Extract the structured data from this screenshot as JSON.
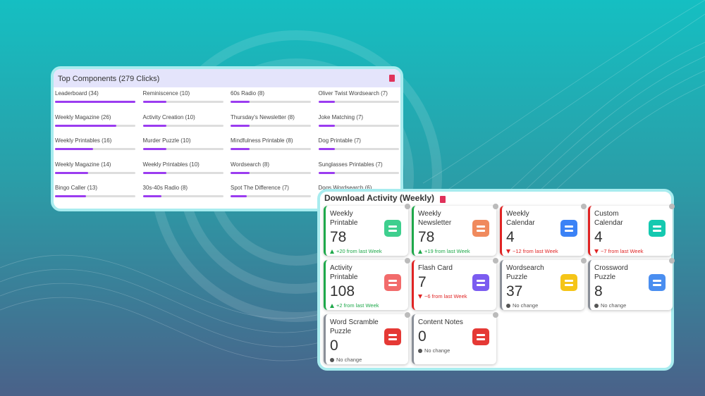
{
  "top_components": {
    "title": "Top Components (279  Clicks)",
    "bar_color": "#9b3cf0",
    "items": [
      {
        "label": "Leaderboard (34)",
        "clicks": 34
      },
      {
        "label": "Weekly Magazine (26)",
        "clicks": 26
      },
      {
        "label": "Weekly Printables (16)",
        "clicks": 16
      },
      {
        "label": "Weekly Magazine (14)",
        "clicks": 14
      },
      {
        "label": "Bingo Caller (13)",
        "clicks": 13
      },
      {
        "label": "Reminiscence (10)",
        "clicks": 10
      },
      {
        "label": "Activity Creation (10)",
        "clicks": 10
      },
      {
        "label": "Murder Puzzle (10)",
        "clicks": 10
      },
      {
        "label": "Weekly Printables (10)",
        "clicks": 10
      },
      {
        "label": "30s-40s Radio (8)",
        "clicks": 8
      },
      {
        "label": "60s Radio (8)",
        "clicks": 8
      },
      {
        "label": "Thursday's Newsletter (8)",
        "clicks": 8
      },
      {
        "label": "Mindfulness Printable (8)",
        "clicks": 8
      },
      {
        "label": "Wordsearch (8)",
        "clicks": 8
      },
      {
        "label": "Spot The Difference (7)",
        "clicks": 7
      },
      {
        "label": "Oliver Twist Wordsearch (7)",
        "clicks": 7
      },
      {
        "label": "Joke Matching (7)",
        "clicks": 7
      },
      {
        "label": "Dog Printable (7)",
        "clicks": 7
      },
      {
        "label": "Sunglasses Printables (7)",
        "clicks": 7
      },
      {
        "label": "Dogs Wordsearch (6)",
        "clicks": 6
      }
    ]
  },
  "download_activity": {
    "title": "Download Activity (Weekly)",
    "cards": [
      {
        "title": "Weekly Printable",
        "value": 78,
        "change": "+20 from last Week",
        "trend": "up",
        "icon_color": "#3ecf8e"
      },
      {
        "title": "Weekly Newsletter",
        "value": 78,
        "change": "+19 from last Week",
        "trend": "up",
        "icon_color": "#f08a5d"
      },
      {
        "title": "Weekly Calendar",
        "value": 4,
        "change": "−12 from last Week",
        "trend": "down",
        "icon_color": "#3b82f6"
      },
      {
        "title": "Custom Calendar",
        "value": 4,
        "change": "−7 from last Week",
        "trend": "down",
        "icon_color": "#14c9b0"
      },
      {
        "title": "Activity Printable",
        "value": 108,
        "change": "+2 from last Week",
        "trend": "up",
        "icon_color": "#f26b6b"
      },
      {
        "title": "Flash Card",
        "value": 7,
        "change": "−6 from last Week",
        "trend": "down",
        "icon_color": "#7b5cf0"
      },
      {
        "title": "Wordsearch Puzzle",
        "value": 37,
        "change": "No change",
        "trend": "flat",
        "icon_color": "#f5c518"
      },
      {
        "title": "Crossword Puzzle",
        "value": 8,
        "change": "No change",
        "trend": "flat",
        "icon_color": "#4a8ef0"
      },
      {
        "title": "Word Scramble Puzzle",
        "value": 0,
        "change": "No change",
        "trend": "flat",
        "icon_color": "#e53935"
      },
      {
        "title": "Content Notes",
        "value": 0,
        "change": "No change",
        "trend": "flat",
        "icon_color": "#e53935"
      }
    ]
  }
}
